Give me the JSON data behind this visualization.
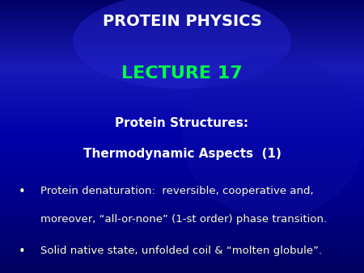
{
  "title1": "PROTEIN PHYSICS",
  "title2": "LECTURE 17",
  "subtitle1": "Protein Structures:",
  "subtitle2": "Thermodynamic Aspects  (1)",
  "bullet1_line1": "Protein denaturation:  reversible, cooperative and,",
  "bullet1_line2": "moreover, “all-or-none” (1-st order) phase transition.",
  "bullet2": "Solid native state, unfolded coil & “molten globule”.",
  "bg_color": "#0a0a99",
  "title1_color": "#ffffff",
  "title2_color": "#00ff44",
  "subtitle_color": "#ffffff",
  "bullet_color": "#ffffcc",
  "bullet_dot_color": "#ffffcc",
  "title1_fontsize": 14,
  "title2_fontsize": 16,
  "subtitle_fontsize": 11,
  "bullet_fontsize": 9.5
}
